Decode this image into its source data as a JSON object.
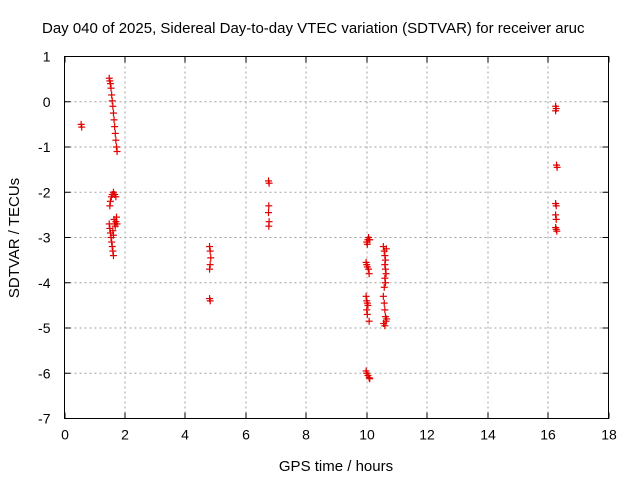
{
  "chart_data": {
    "type": "scatter",
    "title": "Day 040 of 2025, Sidereal Day-to-day VTEC variation (SDTVAR) for receiver aruc",
    "xlabel": "GPS time / hours",
    "ylabel": "SDTVAR / TECUs",
    "xlim": [
      0,
      18
    ],
    "ylim": [
      -7,
      1
    ],
    "xticks": [
      0,
      2,
      4,
      6,
      8,
      10,
      12,
      14,
      16,
      18
    ],
    "yticks": [
      1,
      0,
      -1,
      -2,
      -3,
      -4,
      -5,
      -6,
      -7
    ],
    "grid": true,
    "marker": "+",
    "color": "#e00000",
    "series": [
      {
        "name": "SDTVAR",
        "points": [
          [
            0.55,
            -0.5
          ],
          [
            0.57,
            -0.56
          ],
          [
            1.48,
            0.52
          ],
          [
            1.5,
            0.46
          ],
          [
            1.52,
            0.4
          ],
          [
            1.54,
            0.3
          ],
          [
            1.56,
            0.15
          ],
          [
            1.58,
            0.02
          ],
          [
            1.6,
            -0.1
          ],
          [
            1.62,
            -0.25
          ],
          [
            1.64,
            -0.4
          ],
          [
            1.66,
            -0.55
          ],
          [
            1.68,
            -0.7
          ],
          [
            1.7,
            -0.85
          ],
          [
            1.72,
            -1.0
          ],
          [
            1.74,
            -1.1
          ],
          [
            1.5,
            -2.3
          ],
          [
            1.52,
            -2.2
          ],
          [
            1.55,
            -2.1
          ],
          [
            1.58,
            -2.05
          ],
          [
            1.62,
            -2.0
          ],
          [
            1.66,
            -2.05
          ],
          [
            1.7,
            -2.1
          ],
          [
            1.48,
            -2.7
          ],
          [
            1.5,
            -2.8
          ],
          [
            1.52,
            -2.9
          ],
          [
            1.54,
            -3.0
          ],
          [
            1.56,
            -3.1
          ],
          [
            1.58,
            -3.2
          ],
          [
            1.6,
            -3.3
          ],
          [
            1.62,
            -3.4
          ],
          [
            1.64,
            -2.6
          ],
          [
            1.66,
            -2.7
          ],
          [
            1.68,
            -2.75
          ],
          [
            1.7,
            -2.65
          ],
          [
            1.72,
            -2.55
          ],
          [
            1.74,
            -2.7
          ],
          [
            1.6,
            -2.85
          ],
          [
            1.62,
            -2.95
          ],
          [
            4.8,
            -3.2
          ],
          [
            4.82,
            -3.3
          ],
          [
            4.84,
            -3.45
          ],
          [
            4.82,
            -3.6
          ],
          [
            4.8,
            -3.7
          ],
          [
            4.8,
            -4.35
          ],
          [
            4.82,
            -4.4
          ],
          [
            6.75,
            -1.75
          ],
          [
            6.77,
            -1.8
          ],
          [
            6.76,
            -2.3
          ],
          [
            6.75,
            -2.45
          ],
          [
            6.77,
            -2.65
          ],
          [
            6.76,
            -2.75
          ],
          [
            10.0,
            -3.1
          ],
          [
            10.02,
            -3.15
          ],
          [
            10.04,
            -3.05
          ],
          [
            10.06,
            -3.0
          ],
          [
            10.1,
            -3.05
          ],
          [
            9.98,
            -3.55
          ],
          [
            10.0,
            -3.6
          ],
          [
            10.02,
            -3.65
          ],
          [
            10.06,
            -3.7
          ],
          [
            10.08,
            -3.8
          ],
          [
            9.98,
            -4.3
          ],
          [
            10.0,
            -4.4
          ],
          [
            10.02,
            -4.45
          ],
          [
            10.04,
            -4.5
          ],
          [
            10.0,
            -4.6
          ],
          [
            10.02,
            -4.7
          ],
          [
            10.08,
            -4.85
          ],
          [
            9.98,
            -5.95
          ],
          [
            10.0,
            -6.0
          ],
          [
            10.04,
            -6.05
          ],
          [
            10.08,
            -6.1
          ],
          [
            10.1,
            -6.12
          ],
          [
            10.55,
            -3.2
          ],
          [
            10.58,
            -3.3
          ],
          [
            10.6,
            -3.4
          ],
          [
            10.62,
            -3.5
          ],
          [
            10.6,
            -3.6
          ],
          [
            10.62,
            -3.7
          ],
          [
            10.64,
            -3.8
          ],
          [
            10.6,
            -3.9
          ],
          [
            10.62,
            -4.0
          ],
          [
            10.58,
            -4.1
          ],
          [
            10.55,
            -4.3
          ],
          [
            10.58,
            -4.45
          ],
          [
            10.6,
            -4.6
          ],
          [
            10.62,
            -4.75
          ],
          [
            10.64,
            -4.85
          ],
          [
            10.6,
            -4.95
          ],
          [
            10.56,
            -4.9
          ],
          [
            10.66,
            -4.8
          ],
          [
            10.65,
            -3.25
          ],
          [
            16.25,
            -0.1
          ],
          [
            16.27,
            -0.15
          ],
          [
            16.25,
            -0.2
          ],
          [
            16.28,
            -1.4
          ],
          [
            16.3,
            -1.45
          ],
          [
            16.25,
            -2.25
          ],
          [
            16.27,
            -2.3
          ],
          [
            16.25,
            -2.5
          ],
          [
            16.27,
            -2.6
          ],
          [
            16.25,
            -2.78
          ],
          [
            16.27,
            -2.82
          ],
          [
            16.29,
            -2.86
          ]
        ]
      }
    ]
  }
}
